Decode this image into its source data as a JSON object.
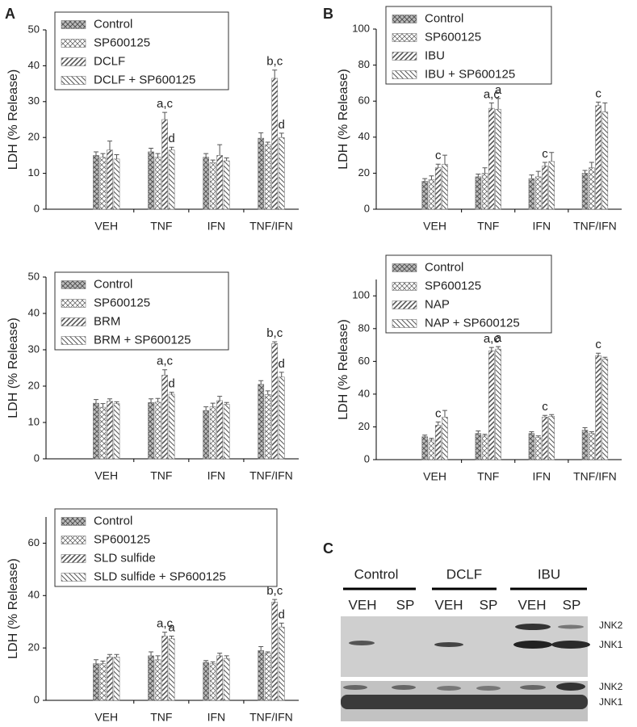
{
  "panel_labels": [
    "A",
    "B",
    "C"
  ],
  "chart_data": [
    {
      "type": "bar",
      "ylabel": "LDH (% Release)",
      "categories": [
        "VEH",
        "TNF",
        "IFN",
        "TNF/IFN"
      ],
      "ylim": [
        0,
        50
      ],
      "yticks": [
        0,
        10,
        20,
        30,
        40,
        50
      ],
      "series": [
        {
          "name": "Control",
          "color": "#555555",
          "pattern": "crosshatch",
          "values": [
            15,
            16,
            14.5,
            19.8
          ],
          "errors": [
            1,
            1,
            1,
            1.5
          ],
          "labels": [
            null,
            null,
            null,
            null
          ]
        },
        {
          "name": "SP600125",
          "color": "#555555",
          "pattern": "checker",
          "values": [
            14.5,
            14.5,
            13,
            18
          ],
          "errors": [
            1,
            1,
            0.7,
            0.7
          ],
          "labels": [
            null,
            null,
            null,
            null
          ]
        },
        {
          "name": "DCLF",
          "color": "#555555",
          "pattern": "forward",
          "values": [
            16.5,
            25,
            15,
            36.5
          ],
          "errors": [
            2.5,
            2,
            3,
            2.3
          ],
          "labels": [
            null,
            "a,c",
            null,
            "b,c"
          ]
        },
        {
          "name": "DCLF + SP600125",
          "color": "#555555",
          "pattern": "backward",
          "values": [
            14,
            16.5,
            13.5,
            20
          ],
          "errors": [
            1.2,
            0.8,
            0.8,
            1.2
          ],
          "labels": [
            null,
            "d",
            null,
            "d"
          ]
        }
      ]
    },
    {
      "type": "bar",
      "ylabel": "LDH (% Release)",
      "categories": [
        "VEH",
        "TNF",
        "IFN",
        "TNF/IFN"
      ],
      "ylim": [
        0,
        50
      ],
      "yticks": [
        0,
        10,
        20,
        30,
        40,
        50
      ],
      "series": [
        {
          "name": "Control",
          "color": "#555555",
          "pattern": "crosshatch",
          "values": [
            15.3,
            15.5,
            13.3,
            20.5
          ],
          "errors": [
            1,
            1,
            1,
            1
          ],
          "labels": [
            null,
            null,
            null,
            null
          ]
        },
        {
          "name": "SP600125",
          "color": "#555555",
          "pattern": "checker",
          "values": [
            14.2,
            15.6,
            14.3,
            17.7
          ],
          "errors": [
            1,
            1,
            1,
            1
          ],
          "labels": [
            null,
            null,
            null,
            null
          ]
        },
        {
          "name": "BRM",
          "color": "#555555",
          "pattern": "forward",
          "values": [
            15.8,
            23,
            16,
            31.7
          ],
          "errors": [
            0.7,
            1.5,
            1.2,
            0.5
          ],
          "labels": [
            null,
            "a,c",
            null,
            "b,c"
          ]
        },
        {
          "name": "BRM + SP600125",
          "color": "#555555",
          "pattern": "backward",
          "values": [
            15.2,
            17.8,
            15,
            22.5
          ],
          "errors": [
            0.5,
            0.5,
            0.5,
            1.3
          ],
          "labels": [
            null,
            "d",
            null,
            "d"
          ]
        }
      ]
    },
    {
      "type": "bar",
      "ylabel": "LDH (% Release)",
      "categories": [
        "VEH",
        "TNF",
        "IFN",
        "TNF/IFN"
      ],
      "ylim": [
        0,
        70
      ],
      "yticks": [
        0,
        20,
        40,
        60
      ],
      "series": [
        {
          "name": "Control",
          "color": "#555555",
          "pattern": "crosshatch",
          "values": [
            14,
            17,
            14.5,
            19
          ],
          "errors": [
            1.5,
            1.5,
            0.7,
            1.5
          ],
          "labels": [
            null,
            null,
            null,
            null
          ]
        },
        {
          "name": "SP600125",
          "color": "#555555",
          "pattern": "checker",
          "values": [
            14,
            15.5,
            14,
            18
          ],
          "errors": [
            1,
            1.5,
            0.7,
            0.5
          ],
          "labels": [
            null,
            null,
            null,
            null
          ]
        },
        {
          "name": "SLD sulfide",
          "color": "#555555",
          "pattern": "forward",
          "values": [
            16.5,
            24.5,
            17,
            37.5
          ],
          "errors": [
            1,
            1.5,
            1,
            1
          ],
          "labels": [
            null,
            "a,c",
            null,
            "b,c"
          ]
        },
        {
          "name": "SLD sulfide + SP600125",
          "color": "#555555",
          "pattern": "backward",
          "values": [
            16.5,
            23.5,
            16,
            28
          ],
          "errors": [
            1,
            1,
            1,
            1.5
          ],
          "labels": [
            null,
            "a",
            null,
            "d"
          ]
        }
      ]
    },
    {
      "type": "bar",
      "ylabel": "LDH (% Release)",
      "categories": [
        "VEH",
        "TNF",
        "IFN",
        "TNF/IFN"
      ],
      "ylim": [
        0,
        100
      ],
      "yticks": [
        0,
        20,
        40,
        60,
        80,
        100
      ],
      "series": [
        {
          "name": "Control",
          "color": "#555555",
          "pattern": "crosshatch",
          "values": [
            15.5,
            18,
            17,
            20
          ],
          "errors": [
            1.5,
            1.5,
            2,
            1.5
          ],
          "labels": [
            null,
            null,
            null,
            null
          ]
        },
        {
          "name": "SP600125",
          "color": "#555555",
          "pattern": "checker",
          "values": [
            16.5,
            20,
            18,
            23
          ],
          "errors": [
            2,
            3,
            3,
            3
          ],
          "labels": [
            null,
            null,
            null,
            null
          ]
        },
        {
          "name": "IBU",
          "color": "#555555",
          "pattern": "forward",
          "values": [
            23,
            56,
            24,
            57.5
          ],
          "errors": [
            2,
            3,
            2,
            2
          ],
          "labels": [
            "c",
            "a,c",
            "c",
            "c"
          ]
        },
        {
          "name": "IBU + SP600125",
          "color": "#555555",
          "pattern": "backward",
          "values": [
            25,
            55.5,
            26.5,
            54
          ],
          "errors": [
            5,
            6,
            5,
            5
          ],
          "labels": [
            null,
            "a",
            null,
            null
          ]
        }
      ]
    },
    {
      "type": "bar",
      "ylabel": "LDH (% Release)",
      "categories": [
        "VEH",
        "TNF",
        "IFN",
        "TNF/IFN"
      ],
      "ylim": [
        0,
        110
      ],
      "yticks": [
        0,
        20,
        40,
        60,
        80,
        100
      ],
      "series": [
        {
          "name": "Control",
          "color": "#555555",
          "pattern": "crosshatch",
          "values": [
            14,
            16,
            16,
            18
          ],
          "errors": [
            1,
            1.5,
            1,
            1.5
          ],
          "labels": [
            null,
            null,
            null,
            null
          ]
        },
        {
          "name": "SP600125",
          "color": "#555555",
          "pattern": "checker",
          "values": [
            12,
            14.5,
            13.5,
            16
          ],
          "errors": [
            1,
            1,
            1,
            1
          ],
          "labels": [
            null,
            null,
            null,
            null
          ]
        },
        {
          "name": "NAP",
          "color": "#555555",
          "pattern": "forward",
          "values": [
            21,
            66.5,
            26,
            63.5
          ],
          "errors": [
            2,
            2,
            1,
            1.5
          ],
          "labels": [
            "c",
            "a,c",
            "c",
            "c"
          ]
        },
        {
          "name": "NAP + SP600125",
          "color": "#555555",
          "pattern": "backward",
          "values": [
            26,
            67.5,
            26.5,
            61.5
          ],
          "errors": [
            4,
            1.5,
            1,
            1
          ],
          "labels": [
            null,
            "a",
            null,
            null
          ]
        }
      ]
    }
  ],
  "blot": {
    "groups": [
      "Control",
      "DCLF",
      "IBU"
    ],
    "lanes": [
      "VEH",
      "SP",
      "VEH",
      "SP",
      "VEH",
      "SP"
    ],
    "bands": [
      "JNK2",
      "JNK1",
      "JNK2",
      "JNK1"
    ]
  }
}
